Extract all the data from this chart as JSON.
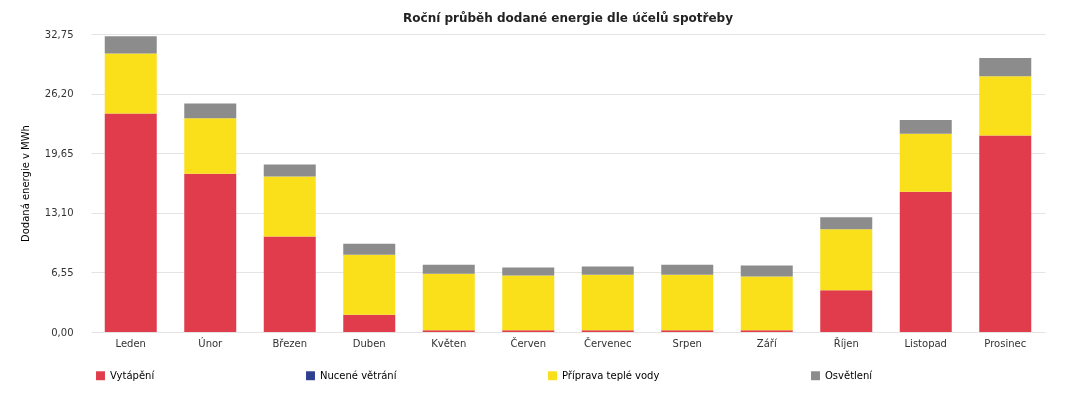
{
  "chart_data": {
    "type": "bar",
    "title": "Roční průběh dodané energie dle účelů spotřeby",
    "ylabel": "Dodaná energie v MWh",
    "categories": [
      "Leden",
      "Únor",
      "Březen",
      "Duben",
      "Květen",
      "Červen",
      "Červenec",
      "Srpen",
      "Září",
      "Říjen",
      "Listopad",
      "Prosinec"
    ],
    "stacked": true,
    "series": [
      {
        "name": "Vytápění",
        "color": "#e03c4b",
        "values": [
          24.0,
          17.4,
          10.5,
          1.9,
          0.2,
          0.2,
          0.2,
          0.2,
          0.2,
          4.6,
          15.4,
          21.6
        ]
      },
      {
        "name": "Nucené větrání",
        "color": "#2e3f8f",
        "values": [
          null,
          null,
          null,
          null,
          null,
          null,
          null,
          null,
          null,
          null,
          null,
          null
        ]
      },
      {
        "name": "Příprava teplé vody",
        "color": "#f9e01b",
        "values": [
          6.6,
          6.1,
          6.6,
          6.6,
          6.2,
          6.0,
          6.1,
          6.1,
          5.9,
          6.7,
          6.4,
          6.5
        ]
      },
      {
        "name": "Osvětlení",
        "color": "#8c8c8c",
        "values": [
          1.9,
          1.6,
          1.3,
          1.2,
          1.0,
          0.9,
          0.9,
          1.1,
          1.2,
          1.3,
          1.5,
          2.0
        ]
      }
    ],
    "ylim": [
      0,
      32.75
    ],
    "yticks": [
      {
        "value": 0,
        "label": "0,00"
      },
      {
        "value": 6.55,
        "label": "6,55"
      },
      {
        "value": 13.1,
        "label": "13,10"
      },
      {
        "value": 19.65,
        "label": "19,65"
      },
      {
        "value": 26.2,
        "label": "26,20"
      },
      {
        "value": 32.75,
        "label": "32,75"
      }
    ],
    "grid": "y",
    "legend": "bottom"
  }
}
